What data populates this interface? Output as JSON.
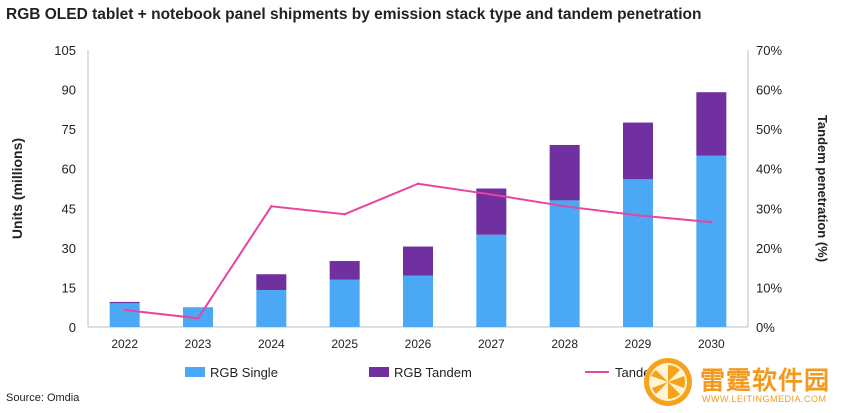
{
  "title": "RGB OLED tablet + notebook panel shipments by emission stack type and tandem penetration",
  "source": "Source: Omdia",
  "watermark": {
    "text": "雷霆软件园",
    "url": "WWW.LEITINGMEDIA.COM"
  },
  "chart_data": {
    "type": "bar",
    "stacked": true,
    "categories": [
      "2022",
      "2023",
      "2024",
      "2025",
      "2026",
      "2027",
      "2028",
      "2029",
      "2030"
    ],
    "series": [
      {
        "name": "RGB Single",
        "type": "bar",
        "axis": "left",
        "color": "#4aa8f4",
        "values": [
          9,
          7.5,
          14,
          18,
          19.5,
          35,
          48,
          56,
          65
        ]
      },
      {
        "name": "RGB Tandem",
        "type": "bar",
        "axis": "left",
        "color": "#7030a0",
        "values": [
          0.5,
          0,
          6,
          7,
          11,
          17.5,
          21,
          21.5,
          24
        ]
      },
      {
        "name": "Tandem %",
        "type": "line",
        "axis": "right",
        "color": "#e8459e",
        "values": [
          4.3,
          2.2,
          30.5,
          28.5,
          36.2,
          33.5,
          30.5,
          28.2,
          26.5
        ]
      }
    ],
    "ylabel": "Units (millions)",
    "y2label": "Tandem penetration (%)",
    "ylim": [
      0,
      105
    ],
    "yticks": [
      "0",
      "15",
      "30",
      "45",
      "60",
      "75",
      "90",
      "105"
    ],
    "y2lim": [
      0,
      70
    ],
    "y2ticks": [
      "0%",
      "10%",
      "20%",
      "30%",
      "40%",
      "50%",
      "60%",
      "70%"
    ],
    "grid": false,
    "legend": "bottom"
  }
}
